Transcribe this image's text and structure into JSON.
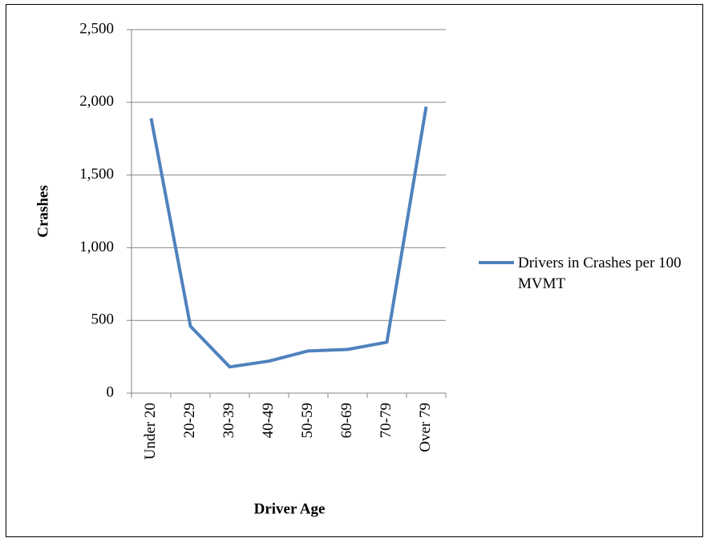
{
  "chart_data": {
    "type": "line",
    "categories": [
      "Under 20",
      "20-29",
      "30-39",
      "40-49",
      "50-59",
      "60-69",
      "70-79",
      "Over 79"
    ],
    "series": [
      {
        "name": "Drivers in Crashes per 100 MVMT",
        "color": "#4f81bd",
        "values": [
          1890,
          460,
          180,
          220,
          290,
          300,
          350,
          1970
        ]
      }
    ],
    "xlabel": "Driver Age",
    "ylabel": "Crashes",
    "ylim": [
      0,
      2500
    ],
    "yticks": [
      0,
      500,
      {
        "value": 1000,
        "label": "1,000"
      },
      {
        "value": 1500,
        "label": "1,500"
      },
      {
        "value": 2000,
        "label": "2,000"
      },
      {
        "value": 2500,
        "label": "2,500"
      }
    ],
    "grid": true,
    "legend": "right"
  }
}
